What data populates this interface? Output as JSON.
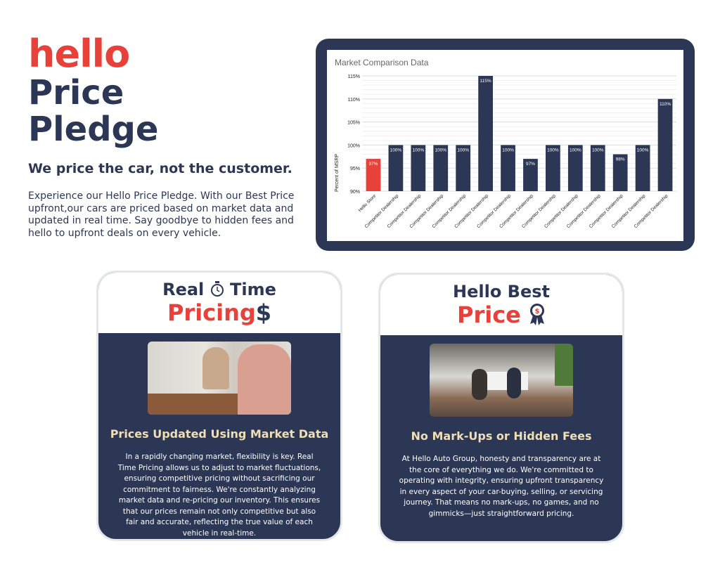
{
  "header": {
    "logo": "hello",
    "title_line1": "Price",
    "title_line2": "Pledge",
    "subtitle": "We price the car, not the customer.",
    "paragraph": "Experience our Hello Price Pledge. With our Best Price upfront,our cars are priced based on market data and updated in real time. Say goodbye to hidden fees and hello to upfront deals on every vehicle."
  },
  "colors": {
    "navy": "#2b3754",
    "red": "#e8413a",
    "cream": "#f0dfb6"
  },
  "chart_data": {
    "type": "bar",
    "title": "Market Comparison Data",
    "xlabel": "",
    "ylabel": "Percent of MSRP",
    "ylim": [
      90,
      115
    ],
    "yticks": [
      "90%",
      "95%",
      "100%",
      "105%",
      "110%",
      "115%"
    ],
    "categories": [
      "Hello Store",
      "Competitor Dealership",
      "Competitor Dealership",
      "Competitor Dealership",
      "Competitor Dealership",
      "Competitor Dealership",
      "Competitor Dealership",
      "Competitor Dealership",
      "Competitor Dealership",
      "Competitor Dealership",
      "Competitor Dealership",
      "Competitor Dealership",
      "Competitor Dealership",
      "Competitor Dealership"
    ],
    "values": [
      97,
      100,
      100,
      100,
      100,
      115,
      100,
      97,
      100,
      100,
      100,
      98,
      100,
      110
    ],
    "labels": [
      "97%",
      "100%",
      "100%",
      "100%",
      "100%",
      "115%",
      "100%",
      "97%",
      "100%",
      "100%",
      "100%",
      "98%",
      "100%",
      "110%"
    ],
    "bar_colors": {
      "highlight": "#e8413a",
      "default": "#2b3754"
    },
    "grid": true,
    "legend": "none"
  },
  "cards": [
    {
      "title_line1_a": "Real",
      "title_icon": "stopwatch-icon",
      "title_line1_b": "Time",
      "title_line2": "Pricing",
      "title_icon2": "dollar-icon",
      "heading": "Prices Updated Using Market Data",
      "body": "In a rapidly changing market, flexibility is key. Real Time Pricing allows us to adjust to market fluctuations, ensuring competitive pricing without sacrificing our commitment to fairness. We're constantly analyzing market data and re-pricing our inventory. This ensures that our prices remain not only competitive but also fair and accurate, reflecting the true value of each vehicle in real-time."
    },
    {
      "title_line1": "Hello Best",
      "title_line2": "Price",
      "title_icon2": "award-ribbon-icon",
      "heading": "No Mark-Ups or Hidden Fees",
      "body": "At Hello Auto Group, honesty and transparency are at the core of everything we do. We're committed to operating with integrity, ensuring upfront transparency in every aspect of your car-buying, selling, or servicing journey. That means no mark-ups, no games, and no gimmicks—just straightforward pricing."
    }
  ]
}
